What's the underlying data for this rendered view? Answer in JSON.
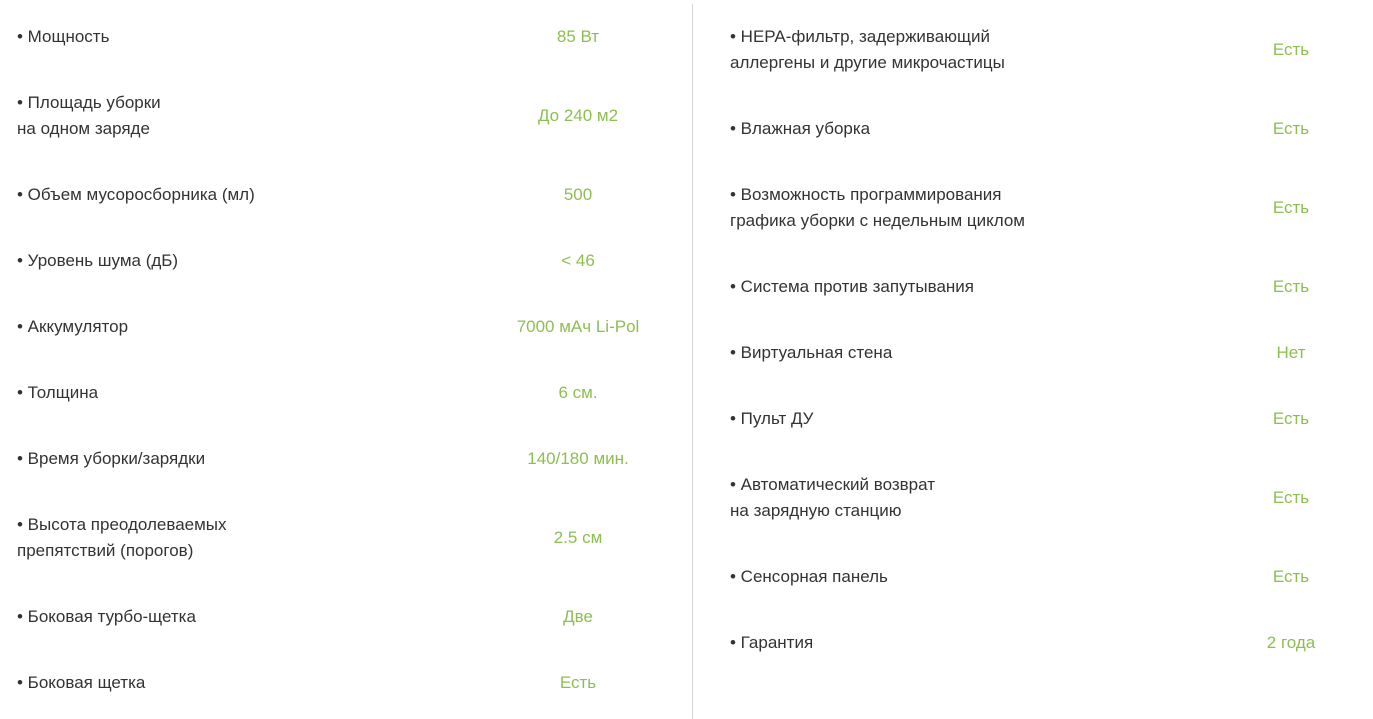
{
  "accent_color": "#8cbf4f",
  "left": [
    {
      "label": "• Мощность",
      "value": "85 Вт"
    },
    {
      "label": "• Площадь уборки\nна одном заряде",
      "value": "До 240 м2"
    },
    {
      "label": "• Объем мусоросборника (мл)",
      "value": "500"
    },
    {
      "label": "• Уровень шума (дБ)",
      "value": "< 46"
    },
    {
      "label": "• Аккумулятор",
      "value": "7000 мАч Li-Pol"
    },
    {
      "label": "• Толщина",
      "value": "6 см."
    },
    {
      "label": "• Время уборки/зарядки",
      "value": "140/180 мин."
    },
    {
      "label": "• Высота преодолеваемых\nпрепятствий (порогов)",
      "value": "2.5 см"
    },
    {
      "label": "• Боковая турбо-щетка",
      "value": "Две"
    },
    {
      "label": "• Боковая щетка",
      "value": "Есть"
    }
  ],
  "right": [
    {
      "label": "• HEPA-фильтр, задерживающий\nаллергены и другие микрочастицы",
      "value": "Есть"
    },
    {
      "label": "• Влажная уборка",
      "value": "Есть"
    },
    {
      "label": "• Возможность программирования\nграфика уборки с недельным циклом",
      "value": "Есть"
    },
    {
      "label": "• Система против запутывания",
      "value": "Есть"
    },
    {
      "label": "• Виртуальная стена",
      "value": "Нет"
    },
    {
      "label": "• Пульт ДУ",
      "value": "Есть"
    },
    {
      "label": "• Автоматический возврат\nна зарядную станцию",
      "value": "Есть"
    },
    {
      "label": "• Сенсорная панель",
      "value": "Есть"
    },
    {
      "label": "• Гарантия",
      "value": "2 года"
    }
  ]
}
